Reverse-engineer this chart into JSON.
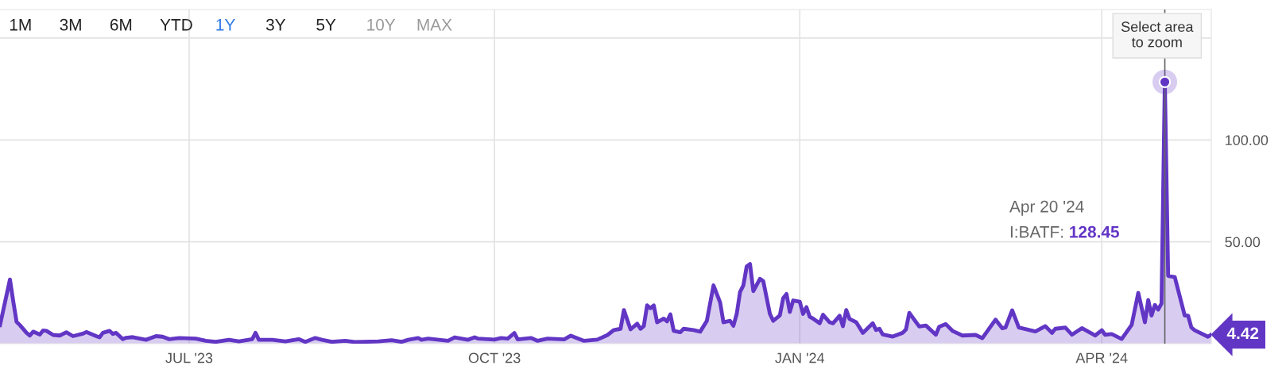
{
  "chart_data": {
    "type": "area",
    "x": [
      "2023-05-05",
      "2023-05-08",
      "2023-05-09",
      "2023-05-10",
      "2023-05-11",
      "2023-05-13",
      "2023-05-14",
      "2023-05-15",
      "2023-05-17",
      "2023-05-18",
      "2023-05-19",
      "2023-05-21",
      "2023-05-23",
      "2023-05-25",
      "2023-05-27",
      "2023-05-30",
      "2023-05-31",
      "2023-06-03",
      "2023-06-04",
      "2023-06-05",
      "2023-06-07",
      "2023-06-08",
      "2023-06-09",
      "2023-06-11",
      "2023-06-12",
      "2023-06-14",
      "2023-06-18",
      "2023-06-21",
      "2023-06-23",
      "2023-06-25",
      "2023-06-28",
      "2023-07-03",
      "2023-07-06",
      "2023-07-09",
      "2023-07-13",
      "2023-07-16",
      "2023-07-20",
      "2023-07-21",
      "2023-07-22",
      "2023-07-26",
      "2023-07-30",
      "2023-08-03",
      "2023-08-05",
      "2023-08-08",
      "2023-08-10",
      "2023-08-13",
      "2023-08-17",
      "2023-08-20",
      "2023-08-27",
      "2023-08-31",
      "2023-09-03",
      "2023-09-05",
      "2023-09-08",
      "2023-09-09",
      "2023-09-11",
      "2023-09-17",
      "2023-09-19",
      "2023-09-21",
      "2023-09-23",
      "2023-09-25",
      "2023-09-26",
      "2023-10-01",
      "2023-10-03",
      "2023-10-05",
      "2023-10-07",
      "2023-10-08",
      "2023-10-12",
      "2023-10-14",
      "2023-10-17",
      "2023-10-22",
      "2023-10-24",
      "2023-10-28",
      "2023-11-01",
      "2023-11-04",
      "2023-11-06",
      "2023-11-08",
      "2023-11-09",
      "2023-11-11",
      "2023-11-13",
      "2023-11-14",
      "2023-11-15",
      "2023-11-16",
      "2023-11-17",
      "2023-11-18",
      "2023-11-19",
      "2023-11-21",
      "2023-11-22",
      "2023-11-23",
      "2023-11-24",
      "2023-11-26",
      "2023-11-27",
      "2023-11-30",
      "2023-12-02",
      "2023-12-04",
      "2023-12-06",
      "2023-12-08",
      "2023-12-09",
      "2023-12-11",
      "2023-12-12",
      "2023-12-13",
      "2023-12-14",
      "2023-12-15",
      "2023-12-16",
      "2023-12-17",
      "2023-12-18",
      "2023-12-20",
      "2023-12-21",
      "2023-12-23",
      "2023-12-24",
      "2023-12-26",
      "2023-12-27",
      "2023-12-28",
      "2023-12-29",
      "2023-12-30",
      "2024-01-01",
      "2024-01-02",
      "2024-01-03",
      "2024-01-04",
      "2024-01-05",
      "2024-01-07",
      "2024-01-08",
      "2024-01-10",
      "2024-01-11",
      "2024-01-13",
      "2024-01-14",
      "2024-01-15",
      "2024-01-16",
      "2024-01-18",
      "2024-01-20",
      "2024-01-23",
      "2024-01-24",
      "2024-01-25",
      "2024-01-26",
      "2024-01-29",
      "2024-02-01",
      "2024-02-02",
      "2024-02-03",
      "2024-02-06",
      "2024-02-08",
      "2024-02-11",
      "2024-02-12",
      "2024-02-14",
      "2024-02-16",
      "2024-02-19",
      "2024-02-23",
      "2024-02-25",
      "2024-02-29",
      "2024-03-02",
      "2024-03-03",
      "2024-03-05",
      "2024-03-07",
      "2024-03-12",
      "2024-03-15",
      "2024-03-17",
      "2024-03-18",
      "2024-03-21",
      "2024-03-23",
      "2024-03-26",
      "2024-03-30",
      "2024-04-01",
      "2024-04-02",
      "2024-04-04",
      "2024-04-07",
      "2024-04-10",
      "2024-04-12",
      "2024-04-14",
      "2024-04-15",
      "2024-04-16",
      "2024-04-17",
      "2024-04-18",
      "2024-04-19",
      "2024-04-20",
      "2024-04-21",
      "2024-04-23",
      "2024-04-26",
      "2024-04-27",
      "2024-04-28",
      "2024-04-29",
      "2024-05-03",
      "2024-05-04"
    ],
    "series": [
      {
        "color": "#6236c5",
        "values": [
          9.1,
          31.5,
          20.7,
          10.7,
          9.1,
          5.3,
          4.0,
          5.9,
          4.5,
          6.5,
          6.3,
          4.3,
          4.0,
          5.6,
          3.7,
          4.9,
          5.7,
          3.7,
          3.1,
          5.3,
          6.3,
          4.8,
          5.3,
          2.2,
          2.9,
          3.2,
          1.9,
          3.7,
          3.4,
          2.2,
          2.8,
          2.5,
          1.4,
          0.9,
          1.9,
          1.1,
          2.2,
          5.3,
          1.9,
          1.9,
          1.1,
          2.2,
          0.9,
          2.8,
          1.9,
          0.9,
          1.4,
          0.8,
          1.1,
          1.7,
          0.9,
          1.9,
          2.8,
          1.9,
          2.5,
          1.4,
          3.1,
          2.5,
          1.9,
          3.1,
          2.5,
          2.0,
          2.8,
          2.5,
          5.2,
          2.1,
          2.8,
          1.4,
          2.5,
          2.1,
          3.9,
          1.4,
          2.0,
          4.2,
          6.7,
          7.3,
          16.5,
          7.0,
          9.8,
          7.3,
          8.6,
          18.8,
          17.4,
          18.8,
          10.5,
          12.3,
          10.9,
          14.4,
          6.3,
          5.6,
          7.3,
          6.7,
          5.9,
          11.2,
          28.6,
          20.2,
          10.5,
          11.2,
          8.8,
          14.6,
          25.4,
          28.6,
          37.9,
          39.1,
          25.8,
          31.8,
          30.7,
          14.6,
          11.2,
          13.9,
          22.3,
          24.4,
          15.6,
          21.2,
          20.6,
          14.6,
          17.9,
          13.2,
          12.3,
          10.0,
          14.2,
          10.5,
          10.0,
          13.7,
          8.6,
          16.5,
          12.1,
          10.5,
          5.3,
          10.0,
          6.7,
          7.3,
          4.5,
          3.5,
          5.3,
          7.0,
          15.1,
          8.4,
          8.9,
          4.4,
          8.3,
          9.6,
          6.3,
          4.0,
          4.3,
          2.7,
          11.8,
          7.6,
          7.9,
          16.4,
          7.9,
          6.0,
          8.6,
          5.3,
          7.3,
          7.9,
          4.4,
          7.6,
          4.0,
          6.6,
          4.4,
          4.7,
          2.3,
          9.2,
          24.9,
          10.5,
          21.4,
          13.8,
          19.0,
          16.7,
          19.7,
          128.45,
          33.3,
          32.7,
          13.8,
          13.8,
          7.9,
          6.6,
          3.4,
          4.42
        ],
        "value_labels": [
          null,
          null,
          null,
          null,
          null,
          null,
          null,
          null,
          null,
          null,
          null,
          null,
          null,
          null,
          null,
          null,
          null,
          null,
          null,
          null,
          null,
          null,
          null,
          null,
          null,
          null,
          null,
          null,
          null,
          null,
          null,
          null,
          null,
          null,
          null,
          null,
          null,
          null,
          null,
          null,
          null,
          null,
          null,
          null,
          null,
          null,
          null,
          null,
          null,
          null,
          null,
          null,
          null,
          null,
          null,
          null,
          null,
          null,
          null,
          null,
          null,
          null,
          null,
          null,
          null,
          null,
          null,
          null,
          null,
          null,
          null,
          null,
          null,
          null,
          null,
          null,
          null,
          null,
          null,
          null,
          null,
          null,
          null,
          null,
          null,
          null,
          null,
          null,
          null,
          null,
          null,
          null,
          null,
          null,
          null,
          null,
          null,
          null,
          null,
          null,
          null,
          null,
          null,
          null,
          null,
          null,
          null,
          null,
          null,
          null,
          null,
          null,
          null,
          null,
          null,
          null,
          null,
          null,
          null,
          null,
          null,
          null,
          null,
          null,
          null,
          null,
          null,
          null,
          null,
          null,
          null,
          null,
          null,
          null,
          null,
          null,
          null,
          null,
          null,
          null,
          null,
          null,
          null,
          null,
          null,
          null,
          null,
          null,
          null,
          null,
          null,
          null,
          null,
          null,
          null,
          null,
          null,
          null,
          null,
          null,
          null,
          null,
          null,
          null,
          null,
          null,
          null,
          null,
          null,
          null,
          null,
          null,
          null,
          null,
          null,
          null,
          null,
          null,
          null,
          "4.42"
        ]
      }
    ],
    "xlim": [
      "2023-05-05",
      "2024-05-04"
    ],
    "xticks": [
      {
        "value": "2023-07-01",
        "label": "JUL '23"
      },
      {
        "value": "2023-10-01",
        "label": "OCT '23"
      },
      {
        "value": "2024-01-01",
        "label": "JAN '24"
      },
      {
        "value": "2024-04-01",
        "label": "APR '24"
      }
    ],
    "ylim": [
      0,
      164
    ],
    "yticks": [
      {
        "value": 50,
        "label": "50.00"
      },
      {
        "value": 100,
        "label": "100.00"
      },
      {
        "value": 150,
        "label": null
      }
    ],
    "grid": true,
    "ref_lines": [
      {
        "axis": "x",
        "value": "2024-04-20",
        "label": null,
        "color": "#666666"
      }
    ],
    "annotations": [
      "1M",
      "3M",
      "6M",
      "YTD",
      "1Y",
      "3Y",
      "5Y",
      "10Y",
      "MAX",
      {
        "text": "Select area to zoom",
        "x": "2024-04-20",
        "y": 128.45
      },
      "Apr 20 '24",
      "I:BATF: 128.45"
    ]
  }
}
